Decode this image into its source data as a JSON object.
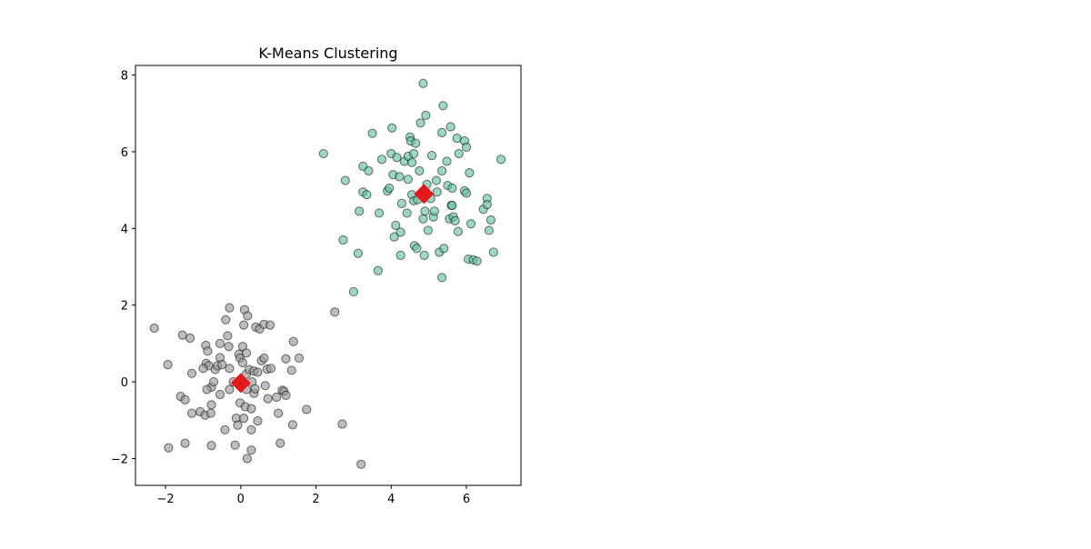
{
  "chart_data": {
    "type": "scatter",
    "title": "K-Means Clustering",
    "xlabel": "",
    "ylabel": "",
    "xlim": [
      -2.8,
      7.45
    ],
    "ylim": [
      -2.7,
      8.25
    ],
    "xticks": [
      -2,
      0,
      2,
      4,
      6
    ],
    "yticks": [
      -2,
      0,
      2,
      4,
      6,
      8
    ],
    "xtick_labels": [
      "−2",
      "0",
      "2",
      "4",
      "6"
    ],
    "ytick_labels": [
      "−2",
      "0",
      "2",
      "4",
      "6",
      "8"
    ],
    "grid": false,
    "legend": false,
    "colors": {
      "cluster_0": "#999999",
      "cluster_1": "#66c2a5",
      "centroid": "#e31a1c",
      "edge": "#000000"
    },
    "clusters": [
      {
        "cluster": 0,
        "points": [
          [
            -2.3,
            1.4
          ],
          [
            -1.94,
            0.45
          ],
          [
            -1.92,
            -1.72
          ],
          [
            -1.55,
            1.22
          ],
          [
            -1.48,
            -1.6
          ],
          [
            -1.35,
            1.14
          ],
          [
            -1.3,
            0.22
          ],
          [
            -1.6,
            -0.38
          ],
          [
            -1.48,
            -0.47
          ],
          [
            -1.3,
            -0.82
          ],
          [
            -1.08,
            -0.78
          ],
          [
            -0.95,
            -0.87
          ],
          [
            -0.93,
            0.95
          ],
          [
            -0.88,
            0.8
          ],
          [
            -0.92,
            0.48
          ],
          [
            -0.85,
            0.42
          ],
          [
            -0.78,
            -0.14
          ],
          [
            -0.9,
            -0.2
          ],
          [
            -0.78,
            -0.6
          ],
          [
            -0.8,
            -0.82
          ],
          [
            -0.78,
            -1.66
          ],
          [
            -0.72,
            0.0
          ],
          [
            -0.68,
            0.32
          ],
          [
            -0.62,
            0.42
          ],
          [
            -0.55,
            1.0
          ],
          [
            -0.55,
            0.63
          ],
          [
            -0.55,
            -0.33
          ],
          [
            -0.5,
            0.45
          ],
          [
            -0.42,
            -1.25
          ],
          [
            -0.4,
            1.62
          ],
          [
            -0.35,
            1.2
          ],
          [
            -0.3,
            1.93
          ],
          [
            -0.32,
            0.92
          ],
          [
            -0.3,
            0.35
          ],
          [
            -0.3,
            -0.2
          ],
          [
            -0.15,
            -1.65
          ],
          [
            -0.12,
            -0.95
          ],
          [
            -0.05,
            0.72
          ],
          [
            -0.02,
            0.62
          ],
          [
            -0.02,
            -0.55
          ],
          [
            0.0,
            0.05
          ],
          [
            -0.08,
            -1.13
          ],
          [
            0.05,
            0.5
          ],
          [
            0.05,
            0.92
          ],
          [
            0.08,
            1.48
          ],
          [
            0.12,
            -0.65
          ],
          [
            0.08,
            -0.95
          ],
          [
            0.15,
            0.75
          ],
          [
            0.15,
            0.2
          ],
          [
            0.15,
            -0.2
          ],
          [
            0.17,
            -2.0
          ],
          [
            0.1,
            1.88
          ],
          [
            0.18,
            1.72
          ],
          [
            0.22,
            0.32
          ],
          [
            0.28,
            -1.25
          ],
          [
            0.3,
            0.0
          ],
          [
            0.28,
            -0.7
          ],
          [
            0.35,
            -0.3
          ],
          [
            0.35,
            0.28
          ],
          [
            0.38,
            -0.18
          ],
          [
            0.4,
            1.43
          ],
          [
            0.45,
            0.25
          ],
          [
            0.45,
            -1.02
          ],
          [
            0.5,
            1.38
          ],
          [
            0.55,
            0.55
          ],
          [
            0.62,
            1.5
          ],
          [
            0.62,
            0.62
          ],
          [
            0.65,
            -0.1
          ],
          [
            0.7,
            0.33
          ],
          [
            0.72,
            -0.44
          ],
          [
            0.78,
            1.48
          ],
          [
            0.8,
            0.35
          ],
          [
            0.95,
            -0.4
          ],
          [
            1.0,
            -0.82
          ],
          [
            1.05,
            -1.6
          ],
          [
            1.1,
            -0.22
          ],
          [
            1.15,
            -0.25
          ],
          [
            1.2,
            -0.35
          ],
          [
            1.2,
            0.6
          ],
          [
            1.35,
            0.3
          ],
          [
            1.4,
            1.05
          ],
          [
            1.38,
            -1.12
          ],
          [
            1.55,
            0.62
          ],
          [
            1.75,
            -0.72
          ],
          [
            2.5,
            1.82
          ],
          [
            2.7,
            -1.1
          ],
          [
            3.2,
            -2.15
          ],
          [
            0.28,
            -1.78
          ],
          [
            -0.2,
            0.0
          ],
          [
            -1.0,
            0.35
          ]
        ]
      },
      {
        "cluster": 1,
        "points": [
          [
            2.2,
            5.95
          ],
          [
            2.72,
            3.7
          ],
          [
            2.78,
            5.25
          ],
          [
            3.0,
            2.35
          ],
          [
            3.12,
            3.35
          ],
          [
            3.15,
            4.45
          ],
          [
            3.25,
            4.95
          ],
          [
            3.25,
            5.62
          ],
          [
            3.35,
            4.88
          ],
          [
            3.4,
            5.5
          ],
          [
            3.5,
            6.48
          ],
          [
            3.65,
            2.9
          ],
          [
            3.68,
            4.4
          ],
          [
            3.75,
            5.8
          ],
          [
            3.9,
            4.98
          ],
          [
            3.95,
            5.05
          ],
          [
            4.0,
            5.95
          ],
          [
            4.02,
            6.62
          ],
          [
            4.05,
            5.4
          ],
          [
            4.08,
            3.78
          ],
          [
            4.12,
            4.08
          ],
          [
            4.15,
            5.85
          ],
          [
            4.22,
            5.35
          ],
          [
            4.25,
            3.3
          ],
          [
            4.25,
            3.9
          ],
          [
            4.28,
            4.65
          ],
          [
            4.35,
            5.75
          ],
          [
            4.42,
            4.4
          ],
          [
            4.45,
            5.28
          ],
          [
            4.45,
            5.88
          ],
          [
            4.5,
            6.38
          ],
          [
            4.52,
            6.28
          ],
          [
            4.55,
            5.72
          ],
          [
            4.55,
            4.88
          ],
          [
            4.6,
            4.72
          ],
          [
            4.6,
            5.95
          ],
          [
            4.65,
            6.22
          ],
          [
            4.62,
            3.55
          ],
          [
            4.68,
            3.48
          ],
          [
            4.7,
            4.75
          ],
          [
            4.75,
            5.5
          ],
          [
            4.78,
            6.75
          ],
          [
            4.82,
            4.9
          ],
          [
            4.85,
            7.78
          ],
          [
            4.85,
            4.25
          ],
          [
            4.88,
            3.3
          ],
          [
            4.9,
            4.45
          ],
          [
            4.92,
            6.95
          ],
          [
            4.95,
            5.15
          ],
          [
            4.98,
            3.95
          ],
          [
            5.05,
            4.78
          ],
          [
            5.08,
            5.9
          ],
          [
            5.12,
            4.3
          ],
          [
            5.15,
            4.45
          ],
          [
            5.2,
            5.25
          ],
          [
            5.22,
            4.95
          ],
          [
            5.28,
            3.38
          ],
          [
            5.35,
            2.72
          ],
          [
            5.35,
            5.5
          ],
          [
            5.35,
            6.5
          ],
          [
            5.38,
            7.2
          ],
          [
            5.4,
            3.48
          ],
          [
            5.48,
            5.75
          ],
          [
            5.5,
            5.12
          ],
          [
            5.55,
            4.25
          ],
          [
            5.58,
            6.65
          ],
          [
            5.6,
            4.6
          ],
          [
            5.62,
            5.05
          ],
          [
            5.65,
            4.3
          ],
          [
            5.7,
            4.2
          ],
          [
            5.75,
            6.35
          ],
          [
            5.78,
            3.92
          ],
          [
            5.8,
            5.95
          ],
          [
            5.95,
            6.28
          ],
          [
            5.95,
            4.98
          ],
          [
            6.0,
            4.92
          ],
          [
            6.0,
            6.12
          ],
          [
            6.05,
            3.2
          ],
          [
            6.08,
            5.45
          ],
          [
            6.12,
            4.12
          ],
          [
            6.18,
            3.18
          ],
          [
            6.28,
            3.15
          ],
          [
            6.45,
            4.5
          ],
          [
            6.55,
            4.78
          ],
          [
            6.55,
            4.62
          ],
          [
            6.6,
            3.95
          ],
          [
            6.65,
            4.22
          ],
          [
            6.72,
            3.38
          ],
          [
            6.92,
            5.8
          ],
          [
            5.62,
            4.6
          ]
        ]
      }
    ],
    "centroids": [
      [
        0.0,
        -0.03
      ],
      [
        4.87,
        4.9
      ]
    ]
  }
}
